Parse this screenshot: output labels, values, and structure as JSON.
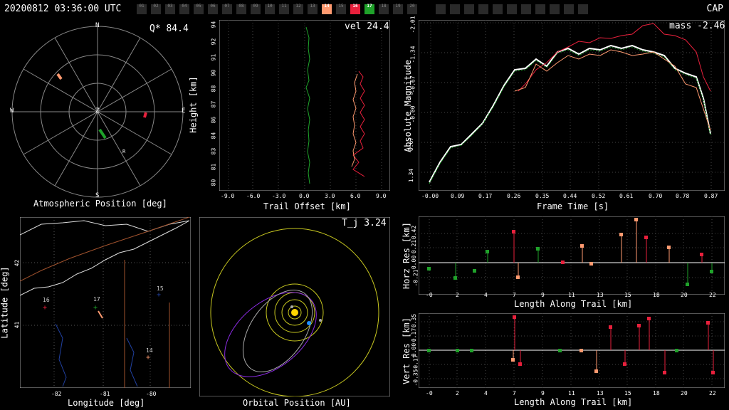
{
  "header": {
    "timestamp": "20200812 03:36:00 UTC",
    "station_code": "CAP",
    "cameras": [
      {
        "label": "01",
        "color": "#2a2a2a"
      },
      {
        "label": "02",
        "color": "#2a2a2a"
      },
      {
        "label": "03",
        "color": "#2a2a2a"
      },
      {
        "label": "04",
        "color": "#2a2a2a"
      },
      {
        "label": "05",
        "color": "#2a2a2a"
      },
      {
        "label": "06",
        "color": "#2a2a2a"
      },
      {
        "label": "07",
        "color": "#2a2a2a"
      },
      {
        "label": "08",
        "color": "#2a2a2a"
      },
      {
        "label": "09",
        "color": "#2a2a2a"
      },
      {
        "label": "10",
        "color": "#2a2a2a"
      },
      {
        "label": "11",
        "color": "#2a2a2a"
      },
      {
        "label": "12",
        "color": "#2a2a2a"
      },
      {
        "label": "13",
        "color": "#2a2a2a"
      },
      {
        "label": "14",
        "color": "#ff9a70"
      },
      {
        "label": "15",
        "color": "#2a2a2a"
      },
      {
        "label": "16",
        "color": "#e8203c"
      },
      {
        "label": "17",
        "color": "#1fa22a"
      },
      {
        "label": "18",
        "color": "#2a2a2a"
      },
      {
        "label": "19",
        "color": "#2a2a2a"
      },
      {
        "label": "20",
        "color": "#2a2a2a"
      }
    ]
  },
  "sky_plot": {
    "title": "Atmospheric Position [deg]",
    "readout": "Q* 84.4",
    "directions": {
      "n": "N",
      "s": "S",
      "e": "E",
      "w": "W",
      "z": "Z",
      "r": "R"
    }
  },
  "height_plot": {
    "readout": "vel 24.4",
    "xlabel": "Trail Offset [km]",
    "ylabel": "Height [km]",
    "xticks": [
      "-9.0",
      "-6.0",
      "-3.0",
      "0.0",
      "3.0",
      "6.0",
      "9.0"
    ],
    "yticks": [
      "94",
      "92",
      "91",
      "90",
      "88",
      "87",
      "86",
      "84",
      "83",
      "81",
      "80"
    ]
  },
  "mag_plot": {
    "readout": "mass -2.46",
    "xlabel": "Frame Time [s]",
    "ylabel": "Absolute Magnitude",
    "xticks": [
      "-0.00",
      "0.09",
      "0.17",
      "0.26",
      "0.35",
      "0.44",
      "0.52",
      "0.61",
      "0.70",
      "0.78",
      "0.87"
    ],
    "yticks": [
      "-2.01",
      "-1.34",
      "-0.67",
      "-0.00",
      "0.67",
      "1.34"
    ]
  },
  "map_plot": {
    "xlabel": "Longitude [deg]",
    "ylabel": "Latitude [deg]",
    "xticks": [
      "-82",
      "-81",
      "-80"
    ],
    "yticks": [
      "42",
      "41"
    ],
    "stations": [
      "16",
      "17",
      "15",
      "14"
    ]
  },
  "orbit_plot": {
    "readout": "T_j 3.24",
    "xlabel": "Orbital Position [AU]"
  },
  "horz_res_plot": {
    "ylabel": "Horz Res [km]",
    "xlabel": "Length Along Trail [km]",
    "xticks": [
      "-0",
      "2",
      "4",
      "7",
      "9",
      "11",
      "13",
      "15",
      "18",
      "20",
      "22"
    ],
    "yticks": [
      "0.42",
      "0.21",
      "0.00",
      "-0.21"
    ]
  },
  "vert_res_plot": {
    "ylabel": "Vert Res [km]",
    "xlabel": "Length Along Trail [km]",
    "xticks": [
      "-0",
      "2",
      "4",
      "7",
      "9",
      "11",
      "13",
      "15",
      "18",
      "20",
      "22"
    ],
    "yticks": [
      "0.35",
      "0.17",
      "0.00",
      "-0.17",
      "-0.35"
    ]
  },
  "colors": {
    "cam14": "#ff9a70",
    "cam16": "#e8203c",
    "cam17": "#1fa22a",
    "grid": "#555555"
  }
}
